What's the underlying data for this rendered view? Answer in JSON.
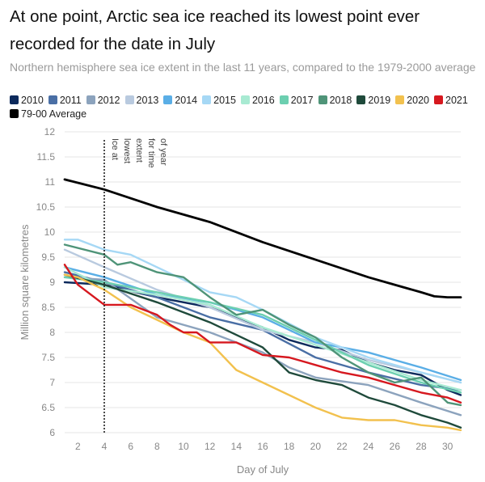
{
  "title": "At one point, Arctic sea ice reached its lowest point ever recorded for the date in July",
  "subtitle": "Northern hemisphere sea ice extent in the last 11 years, compared to the 1979-2000 average",
  "chart_data": {
    "type": "line",
    "xlabel": "Day of July",
    "ylabel": "Million square kilometres",
    "xlim": [
      1,
      31
    ],
    "ylim": [
      6,
      12
    ],
    "xticks": [
      2,
      4,
      6,
      8,
      10,
      12,
      14,
      16,
      18,
      20,
      22,
      24,
      26,
      28,
      30
    ],
    "yticks": [
      6,
      6.5,
      7,
      7.5,
      8,
      8.5,
      9,
      9.5,
      10,
      10.5,
      11,
      11.5,
      12
    ],
    "annotation": {
      "x": 4,
      "text": [
        "Ice at",
        "lowest",
        "extent",
        "for time",
        "of year"
      ]
    },
    "series": [
      {
        "name": "2010",
        "color": "#0d2a5c",
        "x": [
          1,
          4,
          8,
          12,
          16,
          18,
          20,
          22,
          24,
          26,
          28,
          30,
          31
        ],
        "values": [
          9.0,
          8.95,
          8.7,
          8.5,
          8.1,
          7.85,
          7.7,
          7.65,
          7.4,
          7.25,
          7.15,
          6.85,
          6.75
        ]
      },
      {
        "name": "2011",
        "color": "#4a6fa5",
        "x": [
          1,
          4,
          8,
          12,
          16,
          20,
          24,
          28,
          31
        ],
        "values": [
          9.2,
          9.0,
          8.7,
          8.3,
          8.05,
          7.5,
          7.2,
          6.95,
          6.85
        ]
      },
      {
        "name": "2012",
        "color": "#8ca3bd",
        "x": [
          1,
          4,
          8,
          12,
          16,
          18,
          20,
          24,
          28,
          31
        ],
        "values": [
          9.1,
          9.05,
          8.3,
          8.0,
          7.6,
          7.3,
          7.1,
          6.95,
          6.6,
          6.35
        ]
      },
      {
        "name": "2013",
        "color": "#b9cadf",
        "x": [
          1,
          4,
          8,
          12,
          16,
          20,
          24,
          28,
          31
        ],
        "values": [
          9.65,
          9.3,
          8.85,
          8.5,
          8.05,
          7.8,
          7.45,
          7.2,
          7.0
        ]
      },
      {
        "name": "2014",
        "color": "#5aaee6",
        "x": [
          1,
          4,
          8,
          12,
          16,
          20,
          24,
          26,
          28,
          31
        ],
        "values": [
          9.3,
          9.1,
          8.75,
          8.6,
          8.3,
          7.8,
          7.6,
          7.45,
          7.3,
          7.05
        ]
      },
      {
        "name": "2015",
        "color": "#a6d8f5",
        "x": [
          1,
          2,
          4,
          6,
          8,
          10,
          12,
          14,
          16,
          20,
          24,
          28,
          31
        ],
        "values": [
          9.85,
          9.85,
          9.65,
          9.55,
          9.3,
          9.05,
          8.8,
          8.7,
          8.45,
          7.9,
          7.5,
          7.2,
          7.0
        ]
      },
      {
        "name": "2016",
        "color": "#a8ead2",
        "x": [
          1,
          4,
          8,
          12,
          16,
          20,
          24,
          28,
          31
        ],
        "values": [
          9.3,
          8.9,
          8.75,
          8.55,
          8.1,
          7.75,
          7.4,
          7.05,
          6.85
        ]
      },
      {
        "name": "2017",
        "color": "#6ccfb0",
        "x": [
          1,
          4,
          8,
          12,
          16,
          20,
          24,
          28,
          31
        ],
        "values": [
          9.1,
          9.0,
          8.8,
          8.6,
          8.35,
          7.85,
          7.35,
          7.0,
          6.8
        ]
      },
      {
        "name": "2018",
        "color": "#4f9478",
        "x": [
          1,
          4,
          5,
          6,
          8,
          10,
          12,
          14,
          16,
          18,
          20,
          22,
          24,
          26,
          28,
          30,
          31
        ],
        "values": [
          9.75,
          9.55,
          9.35,
          9.4,
          9.2,
          9.1,
          8.7,
          8.35,
          8.45,
          8.15,
          7.9,
          7.5,
          7.2,
          7.0,
          7.1,
          6.6,
          6.55
        ]
      },
      {
        "name": "2019",
        "color": "#1f4a3b",
        "x": [
          1,
          4,
          8,
          12,
          16,
          18,
          20,
          22,
          24,
          26,
          28,
          30,
          31
        ],
        "values": [
          9.15,
          8.95,
          8.6,
          8.2,
          7.7,
          7.2,
          7.05,
          6.95,
          6.7,
          6.55,
          6.35,
          6.2,
          6.1
        ]
      },
      {
        "name": "2020",
        "color": "#f2c14e",
        "x": [
          1,
          2,
          4,
          6,
          8,
          10,
          12,
          14,
          16,
          18,
          20,
          22,
          24,
          26,
          28,
          30,
          31
        ],
        "values": [
          9.15,
          9.1,
          8.85,
          8.5,
          8.25,
          8.0,
          7.8,
          7.25,
          7.0,
          6.75,
          6.5,
          6.3,
          6.25,
          6.25,
          6.15,
          6.1,
          6.05
        ]
      },
      {
        "name": "2021",
        "color": "#d6181f",
        "x": [
          1,
          2,
          4,
          6,
          7,
          8,
          9,
          10,
          11,
          12,
          14,
          16,
          18,
          20,
          22,
          24,
          26,
          28,
          30,
          31
        ],
        "values": [
          9.35,
          8.95,
          8.55,
          8.55,
          8.45,
          8.35,
          8.15,
          8.0,
          8.0,
          7.8,
          7.8,
          7.55,
          7.5,
          7.35,
          7.2,
          7.1,
          6.95,
          6.8,
          6.7,
          6.6
        ]
      },
      {
        "name": "79-00 Average",
        "color": "#000000",
        "x": [
          1,
          4,
          8,
          12,
          16,
          20,
          24,
          26,
          28,
          29,
          30,
          31
        ],
        "values": [
          11.05,
          10.85,
          10.5,
          10.2,
          9.8,
          9.45,
          9.1,
          8.95,
          8.8,
          8.72,
          8.7,
          8.7
        ]
      }
    ]
  }
}
